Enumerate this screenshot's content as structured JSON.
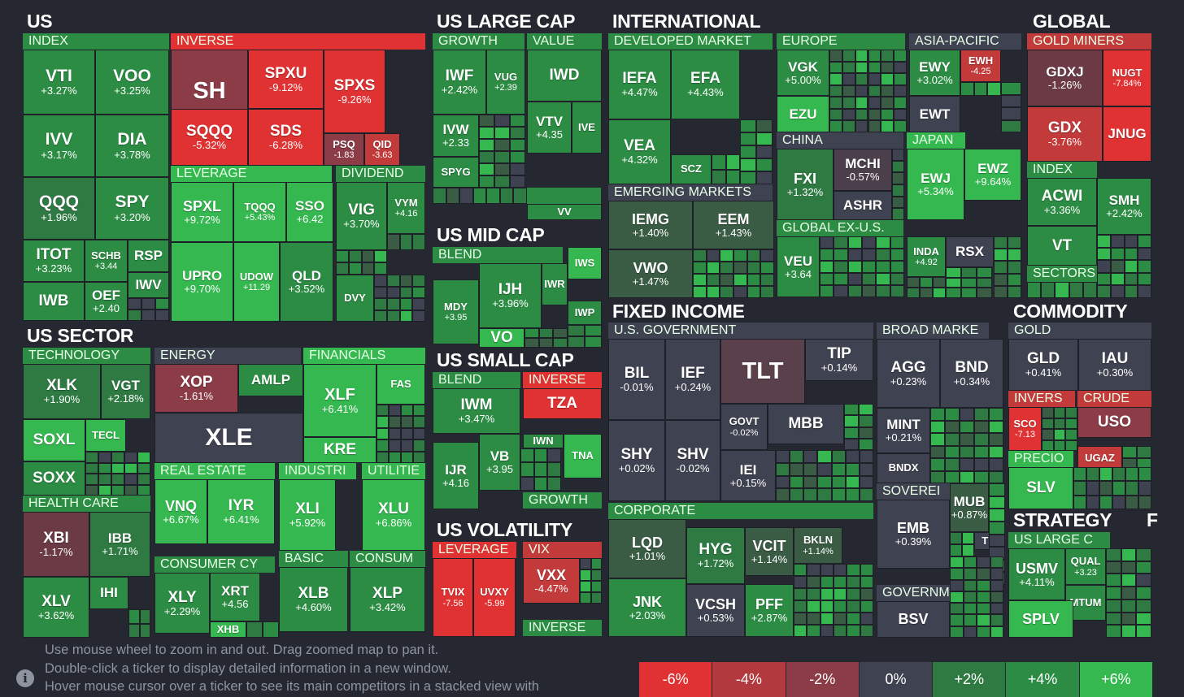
{
  "sections": [
    {
      "id": "us",
      "label": "US"
    },
    {
      "id": "us-sector",
      "label": "US SECTOR"
    },
    {
      "id": "us-large-cap",
      "label": "US LARGE CAP"
    },
    {
      "id": "us-mid-cap",
      "label": "US MID CAP"
    },
    {
      "id": "us-small-cap",
      "label": "US SMALL CAP"
    },
    {
      "id": "us-volatility",
      "label": "US VOLATILITY"
    },
    {
      "id": "international",
      "label": "INTERNATIONAL"
    },
    {
      "id": "global",
      "label": "GLOBAL"
    },
    {
      "id": "fixed-income",
      "label": "FIXED INCOME"
    },
    {
      "id": "commodity",
      "label": "COMMODITY"
    },
    {
      "id": "strategy",
      "label": "STRATEGY"
    },
    {
      "id": "f-cut",
      "label": "F"
    }
  ],
  "groups": [
    {
      "label": "INDEX",
      "color": "#2c8c44"
    },
    {
      "label": "INVERSE",
      "color": "#e03232"
    },
    {
      "label": "LEVERAGE",
      "color": "#35b84f"
    },
    {
      "label": "DIVIDEND",
      "color": "#2c8c44"
    },
    {
      "label": "TECHNOLOGY",
      "color": "#2c8c44"
    },
    {
      "label": "ENERGY",
      "color": "#3f4250"
    },
    {
      "label": "FINANCIALS",
      "color": "#35b84f"
    },
    {
      "label": "REAL ESTATE",
      "color": "#35b84f"
    },
    {
      "label": "INDUSTRI",
      "color": "#35b84f"
    },
    {
      "label": "UTILITIE",
      "color": "#35b84f"
    },
    {
      "label": "HEALTH CARE",
      "color": "#2c8c44"
    },
    {
      "label": "CONSUMER CY",
      "color": "#2c8c44"
    },
    {
      "label": "BASIC",
      "color": "#2c8c44"
    },
    {
      "label": "CONSUM",
      "color": "#2c8c44"
    },
    {
      "label": "GROWTH",
      "color": "#2c8c44"
    },
    {
      "label": "VALUE",
      "color": "#2c8c44"
    },
    {
      "label": "BLEND",
      "color": "#2c8c44"
    },
    {
      "label": "BLEND",
      "color": "#2c8c44"
    },
    {
      "label": "BLEND",
      "color": "#2c8c44"
    },
    {
      "label": "INVERSE",
      "color": "#e03232"
    },
    {
      "label": "GROWTH",
      "color": "#2c8c44"
    },
    {
      "label": "LEVERAGE",
      "color": "#e03232"
    },
    {
      "label": "VIX",
      "color": "#c23a3a"
    },
    {
      "label": "INVERSE",
      "color": "#2c8c44"
    },
    {
      "label": "DEVELOPED MARKET",
      "color": "#2c8c44"
    },
    {
      "label": "EUROPE",
      "color": "#2c8c44"
    },
    {
      "label": "ASIA-PACIFIC",
      "color": "#3f4250"
    },
    {
      "label": "CHINA",
      "color": "#3f4250"
    },
    {
      "label": "JAPAN",
      "color": "#35b84f"
    },
    {
      "label": "EMERGING MARKETS",
      "color": "#3f4250"
    },
    {
      "label": "GLOBAL EX-U.S.",
      "color": "#2c8c44"
    },
    {
      "label": "GOLD MINERS",
      "color": "#c23a3a"
    },
    {
      "label": "INDEX",
      "color": "#2c8c44"
    },
    {
      "label": "SECTORS",
      "color": "#2c8c44"
    },
    {
      "label": "U.S. GOVERNMENT",
      "color": "#3f4250"
    },
    {
      "label": "BROAD MARKE",
      "color": "#3f4250"
    },
    {
      "label": "SOVEREI",
      "color": "#3f4250"
    },
    {
      "label": "GOVERNME",
      "color": "#3f4250"
    },
    {
      "label": "CORPORATE",
      "color": "#2c8c44"
    },
    {
      "label": "GOLD",
      "color": "#3f4250"
    },
    {
      "label": "INVERS",
      "color": "#c23a3a"
    },
    {
      "label": "CRUDE",
      "color": "#c23a3a"
    },
    {
      "label": "PRECIO",
      "color": "#35b84f"
    },
    {
      "label": "US LARGE C",
      "color": "#2c8c44"
    }
  ],
  "tiles": [
    {
      "t": "VTI",
      "c": "+3.27%",
      "color": "#2c8c44"
    },
    {
      "t": "VOO",
      "c": "+3.25%",
      "color": "#2c8c44"
    },
    {
      "t": "IVV",
      "c": "+3.17%",
      "color": "#2c8c44"
    },
    {
      "t": "DIA",
      "c": "+3.78%",
      "color": "#2c8c44"
    },
    {
      "t": "QQQ",
      "c": "+1.96%",
      "color": "#2f7a43"
    },
    {
      "t": "SPY",
      "c": "+3.20%",
      "color": "#2c8c44"
    },
    {
      "t": "ITOT",
      "c": "+3.23%",
      "color": "#2c8c44"
    },
    {
      "t": "SCHB",
      "c": "+3.44",
      "color": "#2c8c44"
    },
    {
      "t": "RSP",
      "c": "",
      "color": "#2c8c44"
    },
    {
      "t": "IWB",
      "c": "",
      "color": "#2c8c44"
    },
    {
      "t": "OEF",
      "c": "+2.40",
      "color": "#2c8c44"
    },
    {
      "t": "IWV",
      "c": "",
      "color": "#2c8c44"
    },
    {
      "t": "SH",
      "c": "",
      "color": "#8b3c47"
    },
    {
      "t": "SPXU",
      "c": "-9.12%",
      "color": "#e03232"
    },
    {
      "t": "SPXS",
      "c": "-9.26%",
      "color": "#e03232"
    },
    {
      "t": "SQQQ",
      "c": "-5.32%",
      "color": "#e03232"
    },
    {
      "t": "SDS",
      "c": "-6.28%",
      "color": "#e03232"
    },
    {
      "t": "PSQ",
      "c": "-1.83",
      "color": "#8b3c47"
    },
    {
      "t": "QID",
      "c": "-3.63",
      "color": "#c23a3a"
    },
    {
      "t": "SPXL",
      "c": "+9.72%",
      "color": "#35b84f"
    },
    {
      "t": "TQQQ",
      "c": "+5.43%",
      "color": "#35b84f"
    },
    {
      "t": "SSO",
      "c": "+6.42",
      "color": "#35b84f"
    },
    {
      "t": "UPRO",
      "c": "+9.70%",
      "color": "#35b84f"
    },
    {
      "t": "UDOW",
      "c": "+11.29",
      "color": "#35b84f"
    },
    {
      "t": "QLD",
      "c": "+3.52%",
      "color": "#2c8c44"
    },
    {
      "t": "VIG",
      "c": "+3.70%",
      "color": "#2c8c44"
    },
    {
      "t": "VYM",
      "c": "+4.16",
      "color": "#2c8c44"
    },
    {
      "t": "DVY",
      "c": "",
      "color": "#2c8c44"
    },
    {
      "t": "XLK",
      "c": "+1.90%",
      "color": "#2f7a43"
    },
    {
      "t": "VGT",
      "c": "+2.18%",
      "color": "#2f7a43"
    },
    {
      "t": "SOXL",
      "c": "",
      "color": "#35b84f"
    },
    {
      "t": "TECL",
      "c": "",
      "color": "#35b84f"
    },
    {
      "t": "SOXX",
      "c": "",
      "color": "#2c8c44"
    },
    {
      "t": "XOP",
      "c": "-1.61%",
      "color": "#8b3c47"
    },
    {
      "t": "AMLP",
      "c": "",
      "color": "#2c8c44"
    },
    {
      "t": "XLE",
      "c": "",
      "color": "#3f4250"
    },
    {
      "t": "XLF",
      "c": "+6.41%",
      "color": "#35b84f"
    },
    {
      "t": "FAS",
      "c": "",
      "color": "#35b84f"
    },
    {
      "t": "KRE",
      "c": "",
      "color": "#35b84f"
    },
    {
      "t": "VNQ",
      "c": "+6.67%",
      "color": "#35b84f"
    },
    {
      "t": "IYR",
      "c": "+6.41%",
      "color": "#35b84f"
    },
    {
      "t": "XLI",
      "c": "+5.92%",
      "color": "#35b84f"
    },
    {
      "t": "XLU",
      "c": "+6.86%",
      "color": "#35b84f"
    },
    {
      "t": "XBI",
      "c": "-1.17%",
      "color": "#6b3a45"
    },
    {
      "t": "IBB",
      "c": "+1.71%",
      "color": "#2f7a43"
    },
    {
      "t": "XLV",
      "c": "+3.62%",
      "color": "#2c8c44"
    },
    {
      "t": "IHI",
      "c": "",
      "color": "#2c8c44"
    },
    {
      "t": "XLY",
      "c": "+2.29%",
      "color": "#2c8c44"
    },
    {
      "t": "XRT",
      "c": "+4.56",
      "color": "#2c8c44"
    },
    {
      "t": "XHB",
      "c": "",
      "color": "#35b84f"
    },
    {
      "t": "XLB",
      "c": "+4.60%",
      "color": "#2c8c44"
    },
    {
      "t": "XLP",
      "c": "+3.42%",
      "color": "#2c8c44"
    },
    {
      "t": "IWF",
      "c": "+2.42%",
      "color": "#2c8c44"
    },
    {
      "t": "VUG",
      "c": "+2.39",
      "color": "#2c8c44"
    },
    {
      "t": "IWD",
      "c": "",
      "color": "#2c8c44"
    },
    {
      "t": "VTV",
      "c": "+4.35",
      "color": "#2c8c44"
    },
    {
      "t": "IVE",
      "c": "",
      "color": "#2c8c44"
    },
    {
      "t": "IVW",
      "c": "+2.33",
      "color": "#2c8c44"
    },
    {
      "t": "SPYG",
      "c": "",
      "color": "#2c8c44"
    },
    {
      "t": "VV",
      "c": "",
      "color": "#2c8c44"
    },
    {
      "t": "IWS",
      "c": "",
      "color": "#35b84f"
    },
    {
      "t": "IJH",
      "c": "+3.96%",
      "color": "#2c8c44"
    },
    {
      "t": "MDY",
      "c": "+3.95",
      "color": "#2c8c44"
    },
    {
      "t": "IWR",
      "c": "",
      "color": "#2c8c44"
    },
    {
      "t": "VO",
      "c": "",
      "color": "#35b84f"
    },
    {
      "t": "IWP",
      "c": "",
      "color": "#2c8c44"
    },
    {
      "t": "IWM",
      "c": "+3.47%",
      "color": "#2c8c44"
    },
    {
      "t": "TZA",
      "c": "",
      "color": "#e03232"
    },
    {
      "t": "VB",
      "c": "+3.95",
      "color": "#2c8c44"
    },
    {
      "t": "IJR",
      "c": "+4.16",
      "color": "#2c8c44"
    },
    {
      "t": "IWN",
      "c": "",
      "color": "#2c8c44"
    },
    {
      "t": "TNA",
      "c": "",
      "color": "#35b84f"
    },
    {
      "t": "TVIX",
      "c": "-7.56",
      "color": "#e03232"
    },
    {
      "t": "UVXY",
      "c": "-5.99",
      "color": "#e03232"
    },
    {
      "t": "VXX",
      "c": "-4.47%",
      "color": "#c23a3a"
    },
    {
      "t": "IEFA",
      "c": "+4.47%",
      "color": "#2c8c44"
    },
    {
      "t": "EFA",
      "c": "+4.43%",
      "color": "#2c8c44"
    },
    {
      "t": "VEA",
      "c": "+4.32%",
      "color": "#2c8c44"
    },
    {
      "t": "SCZ",
      "c": "",
      "color": "#2c8c44"
    },
    {
      "t": "VGK",
      "c": "+5.00%",
      "color": "#2c8c44"
    },
    {
      "t": "EZU",
      "c": "",
      "color": "#35b84f"
    },
    {
      "t": "EWY",
      "c": "+3.02%",
      "color": "#2c8c44"
    },
    {
      "t": "EWH",
      "c": "-4.25",
      "color": "#c23a3a"
    },
    {
      "t": "EWT",
      "c": "",
      "color": "#3f4250"
    },
    {
      "t": "FXI",
      "c": "+1.32%",
      "color": "#2f7a43"
    },
    {
      "t": "MCHI",
      "c": "-0.57%",
      "color": "#4a3f4a"
    },
    {
      "t": "ASHR",
      "c": "",
      "color": "#3f4250"
    },
    {
      "t": "EWJ",
      "c": "+5.34%",
      "color": "#35b84f"
    },
    {
      "t": "EWZ",
      "c": "+9.64%",
      "color": "#35b84f"
    },
    {
      "t": "IEMG",
      "c": "+1.40%",
      "color": "#3a5c44"
    },
    {
      "t": "EEM",
      "c": "+1.43%",
      "color": "#3a5c44"
    },
    {
      "t": "VWO",
      "c": "+1.47%",
      "color": "#3a5c44"
    },
    {
      "t": "VEU",
      "c": "+3.64",
      "color": "#2c8c44"
    },
    {
      "t": "INDA",
      "c": "+4.92",
      "color": "#2c8c44"
    },
    {
      "t": "RSX",
      "c": "",
      "color": "#3f4250"
    },
    {
      "t": "GDXJ",
      "c": "-1.26%",
      "color": "#6b3a45"
    },
    {
      "t": "NUGT",
      "c": "-7.84%",
      "color": "#e03232"
    },
    {
      "t": "GDX",
      "c": "-3.76%",
      "color": "#c23a3a"
    },
    {
      "t": "JNUG",
      "c": "",
      "color": "#e03232"
    },
    {
      "t": "ACWI",
      "c": "+3.36%",
      "color": "#2c8c44"
    },
    {
      "t": "SMH",
      "c": "+2.42%",
      "color": "#2c8c44"
    },
    {
      "t": "VT",
      "c": "",
      "color": "#2c8c44"
    },
    {
      "t": "BIL",
      "c": "-0.01%",
      "color": "#3f4250"
    },
    {
      "t": "IEF",
      "c": "+0.24%",
      "color": "#3f4250"
    },
    {
      "t": "TLT",
      "c": "",
      "color": "#5a404a"
    },
    {
      "t": "TIP",
      "c": "+0.14%",
      "color": "#3f4250"
    },
    {
      "t": "GOVT",
      "c": "-0.02%",
      "color": "#3f4250"
    },
    {
      "t": "MBB",
      "c": "",
      "color": "#3f4250"
    },
    {
      "t": "SHY",
      "c": "+0.02%",
      "color": "#3f4250"
    },
    {
      "t": "SHV",
      "c": "-0.02%",
      "color": "#3f4250"
    },
    {
      "t": "IEI",
      "c": "+0.15%",
      "color": "#3f4250"
    },
    {
      "t": "AGG",
      "c": "+0.23%",
      "color": "#3f4250"
    },
    {
      "t": "BND",
      "c": "+0.34%",
      "color": "#3f4250"
    },
    {
      "t": "MINT",
      "c": "+0.21%",
      "color": "#3f4250"
    },
    {
      "t": "BNDX",
      "c": "",
      "color": "#3f4250"
    },
    {
      "t": "EMB",
      "c": "+0.39%",
      "color": "#3f4250"
    },
    {
      "t": "MUB",
      "c": "+0.87%",
      "color": "#3a5c44"
    },
    {
      "t": "TFI",
      "c": "",
      "color": "#3f4250"
    },
    {
      "t": "BSV",
      "c": "",
      "color": "#3f4250"
    },
    {
      "t": "LQD",
      "c": "+1.01%",
      "color": "#3a5c44"
    },
    {
      "t": "HYG",
      "c": "+1.72%",
      "color": "#2f7a43"
    },
    {
      "t": "VCIT",
      "c": "+1.14%",
      "color": "#3a5c44"
    },
    {
      "t": "BKLN",
      "c": "+1.14%",
      "color": "#3a5c44"
    },
    {
      "t": "JNK",
      "c": "+2.03%",
      "color": "#2c8c44"
    },
    {
      "t": "VCSH",
      "c": "+0.53%",
      "color": "#3f4250"
    },
    {
      "t": "PFF",
      "c": "+2.87%",
      "color": "#2c8c44"
    },
    {
      "t": "GLD",
      "c": "+0.41%",
      "color": "#3f4250"
    },
    {
      "t": "IAU",
      "c": "+0.30%",
      "color": "#3f4250"
    },
    {
      "t": "SCO",
      "c": "-7.13",
      "color": "#e03232"
    },
    {
      "t": "USO",
      "c": "",
      "color": "#8b3c47"
    },
    {
      "t": "UGAZ",
      "c": "",
      "color": "#c23a3a"
    },
    {
      "t": "SLV",
      "c": "",
      "color": "#35b84f"
    },
    {
      "t": "USMV",
      "c": "+4.11%",
      "color": "#2c8c44"
    },
    {
      "t": "QUAL",
      "c": "+3.23",
      "color": "#2c8c44"
    },
    {
      "t": "MTUM",
      "c": "",
      "color": "#2c8c44"
    },
    {
      "t": "SPLV",
      "c": "",
      "color": "#35b84f"
    }
  ],
  "footer": {
    "line1": "Use mouse wheel to zoom in and out. Drag zoomed map to pan it.",
    "line2": "Double-click a ticker to display detailed information in a new window.",
    "line3": "Hover mouse cursor over a ticker to see its main competitors in a stacked view with",
    "info_icon": "info-icon"
  },
  "legend": [
    {
      "label": "-6%",
      "color": "#e03232"
    },
    {
      "label": "-4%",
      "color": "#b23a3f"
    },
    {
      "label": "-2%",
      "color": "#8b3c47"
    },
    {
      "label": "0%",
      "color": "#3f4250"
    },
    {
      "label": "+2%",
      "color": "#2f7a43"
    },
    {
      "label": "+4%",
      "color": "#2c8c44"
    },
    {
      "label": "+6%",
      "color": "#35b84f"
    }
  ],
  "filler_colors": [
    "#2c8c44",
    "#2f7a43",
    "#35b84f",
    "#3f4250",
    "#3a5c44",
    "#2c8c44",
    "#2f7a43"
  ]
}
